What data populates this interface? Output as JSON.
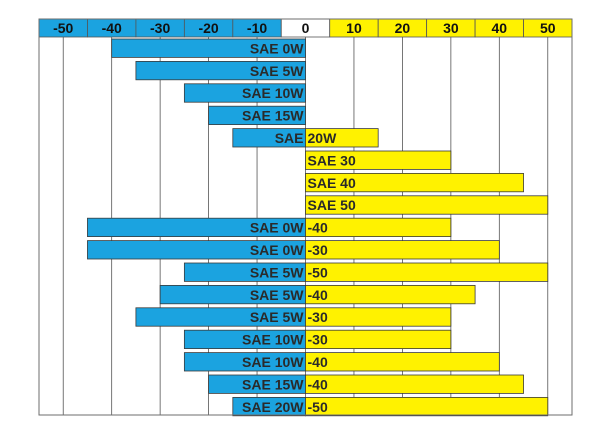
{
  "chart_data": {
    "type": "bar",
    "subtype": "floating-horizontal",
    "xlim": [
      -55,
      55
    ],
    "ticks": [
      -50,
      -40,
      -30,
      -20,
      -10,
      0,
      10,
      20,
      30,
      40,
      50
    ],
    "tick_labels": [
      "-50",
      "-40",
      "-30",
      "-20",
      "-10",
      "0",
      "10",
      "20",
      "30",
      "40",
      "50"
    ],
    "grid": true,
    "colors": {
      "negative": "#1ba3e0",
      "positive": "#fff200",
      "zero_cell": "#ffffff",
      "grid": "#555555",
      "border": "#6e6e6e"
    },
    "rows": [
      {
        "left_label": "SAE 0W",
        "right_label": "",
        "min": -40,
        "max": 0
      },
      {
        "left_label": "SAE 5W",
        "right_label": "",
        "min": -35,
        "max": 0
      },
      {
        "left_label": "SAE 10W",
        "right_label": "",
        "min": -25,
        "max": 0
      },
      {
        "left_label": "SAE 15W",
        "right_label": "",
        "min": -20,
        "max": 0
      },
      {
        "left_label": "SAE",
        "right_label": "20W",
        "min": -15,
        "max": 15
      },
      {
        "left_label": "",
        "right_label": "SAE 30",
        "min": 0,
        "max": 30
      },
      {
        "left_label": "",
        "right_label": "SAE 40",
        "min": 0,
        "max": 45
      },
      {
        "left_label": "",
        "right_label": "SAE 50",
        "min": 0,
        "max": 50
      },
      {
        "left_label": "SAE 0W",
        "right_label": "-40",
        "min": -45,
        "max": 30
      },
      {
        "left_label": "SAE 0W",
        "right_label": "-30",
        "min": -45,
        "max": 40
      },
      {
        "left_label": "SAE 5W",
        "right_label": "-50",
        "min": -25,
        "max": 50
      },
      {
        "left_label": "SAE 5W",
        "right_label": "-40",
        "min": -30,
        "max": 35
      },
      {
        "left_label": "SAE 5W",
        "right_label": "-30",
        "min": -35,
        "max": 30
      },
      {
        "left_label": "SAE 10W",
        "right_label": "-30",
        "min": -25,
        "max": 30
      },
      {
        "left_label": "SAE 10W",
        "right_label": "-40",
        "min": -25,
        "max": 40
      },
      {
        "left_label": "SAE 15W",
        "right_label": "-40",
        "min": -20,
        "max": 45
      },
      {
        "left_label": "SAE 20W",
        "right_label": "-50",
        "min": -15,
        "max": 50
      }
    ]
  }
}
